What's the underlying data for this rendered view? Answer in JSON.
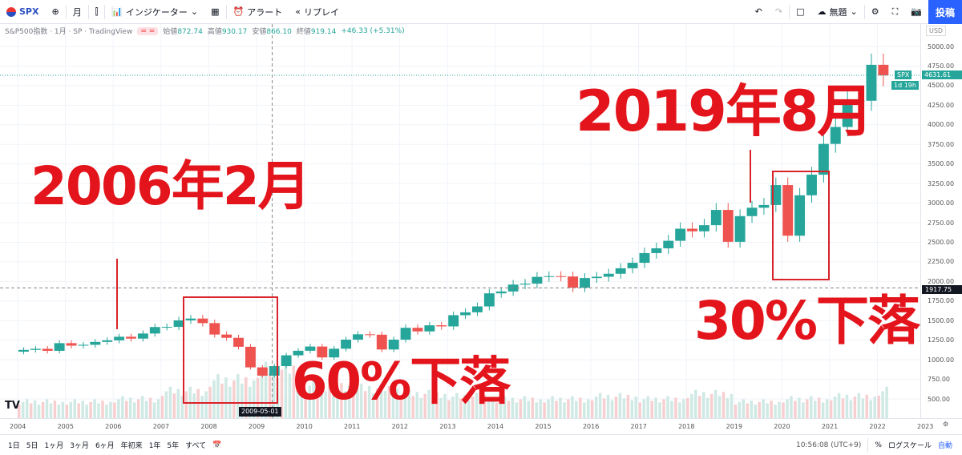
{
  "toolbar": {
    "symbol": "SPX",
    "interval": "月",
    "indicators": "インジケーター",
    "alert": "アラート",
    "replay": "リプレイ",
    "layout_name": "無題",
    "post": "投稿"
  },
  "legend": {
    "title": "S&P500指数 · 1月 · SP · TradingView",
    "open_label": "始値",
    "open": "872.74",
    "high_label": "高値",
    "high": "930.17",
    "low_label": "安値",
    "low": "866.10",
    "close_label": "終値",
    "close": "919.14",
    "change": "+46.33 (+5.31%)"
  },
  "price_axis": {
    "currency": "USD",
    "ticks": [
      "5000.00",
      "4750.00",
      "4500.00",
      "4250.00",
      "4000.00",
      "3750.00",
      "3500.00",
      "3250.00",
      "3000.00",
      "2750.00",
      "2500.00",
      "2250.00",
      "2000.00",
      "1750.00",
      "1500.00",
      "1250.00",
      "1000.00",
      "750.00",
      "500.00"
    ],
    "last_symbol": "SPX",
    "last_price": "4631.61",
    "countdown": "1d 19h",
    "crosshair_price": "1917.75"
  },
  "time_axis": {
    "ticks": [
      "2004",
      "2005",
      "2006",
      "2007",
      "2008",
      "2009",
      "2010",
      "2011",
      "2012",
      "2013",
      "2014",
      "2015",
      "2016",
      "2017",
      "2018",
      "2019",
      "2020",
      "2021",
      "2022",
      "2023"
    ],
    "crosshair_date": "2009-05-01"
  },
  "bottom": {
    "ranges": [
      "1日",
      "5日",
      "1ヶ月",
      "3ヶ月",
      "6ヶ月",
      "年初来",
      "1年",
      "5年",
      "すべて"
    ],
    "time": "10:56:08 (UTC+9)",
    "percent": "%",
    "log": "ログスケール",
    "auto": "自動"
  },
  "annotations": {
    "a1": "2006年2月",
    "a2": "2019年8月",
    "a3": "60%下落",
    "a4": "30%下落",
    "color": "#e3141b"
  },
  "chart_data": {
    "type": "candlestick",
    "title": "",
    "ylim": [
      500,
      5000
    ],
    "xlim": [
      2004,
      2023
    ],
    "colors": {
      "up": "#26a69a",
      "down": "#ef5350"
    },
    "start": 2004.0,
    "period": "quarter",
    "closes": [
      1126,
      1140,
      1114,
      1212,
      1180,
      1191,
      1228,
      1248,
      1294,
      1270,
      1335,
      1418,
      1420,
      1503,
      1526,
      1468,
      1322,
      1280,
      1166,
      903,
      797,
      919,
      1057,
      1115,
      1169,
      1030,
      1141,
      1257,
      1325,
      1320,
      1131,
      1257,
      1408,
      1362,
      1440,
      1426,
      1569,
      1606,
      1681,
      1848,
      1872,
      1960,
      1972,
      2058,
      2067,
      2063,
      1920,
      2043,
      2060,
      2098,
      2168,
      2238,
      2362,
      2423,
      2519,
      2673,
      2640,
      2718,
      2913,
      2506,
      2834,
      2941,
      2976,
      3230,
      2584,
      3100,
      3363,
      3756,
      3972,
      4297,
      4307,
      4766,
      4631
    ],
    "volume_relative": [
      0.3,
      0.3,
      0.35,
      0.5,
      0.7,
      0.9,
      0.6,
      0.55,
      0.45,
      0.4,
      0.35,
      0.35,
      0.4,
      0.35,
      0.45,
      0.3,
      0.35,
      0.4,
      0.5,
      0.55,
      0.5
    ]
  }
}
